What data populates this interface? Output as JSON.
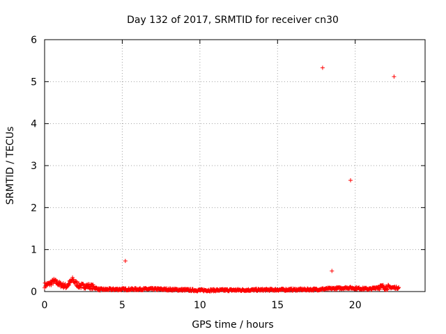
{
  "chart_data": {
    "type": "scatter",
    "title": "Day 132 of 2017, SRMTID for receiver cn30",
    "xlabel": "GPS time / hours",
    "ylabel": "SRMTID / TECUs",
    "xlim": [
      0,
      24.5
    ],
    "ylim": [
      0,
      6
    ],
    "xticks": [
      "0",
      "5",
      "10",
      "15",
      "20"
    ],
    "yticks": [
      "0",
      "1",
      "2",
      "3",
      "4",
      "5",
      "6"
    ],
    "xtick_values": [
      0,
      5,
      10,
      15,
      20
    ],
    "ytick_values": [
      0,
      1,
      2,
      3,
      4,
      5,
      6
    ],
    "grid": true,
    "marker": "+",
    "marker_color": "#ff0000",
    "series": [
      {
        "name": "SRMTID",
        "outliers": [
          {
            "x": 5.2,
            "y": 0.73
          },
          {
            "x": 17.9,
            "y": 5.33
          },
          {
            "x": 18.5,
            "y": 0.49
          },
          {
            "x": 19.7,
            "y": 2.65
          },
          {
            "x": 22.5,
            "y": 5.12
          }
        ],
        "baseline_profile": [
          {
            "x": 0.0,
            "y": 0.15
          },
          {
            "x": 0.3,
            "y": 0.18
          },
          {
            "x": 0.6,
            "y": 0.25
          },
          {
            "x": 1.0,
            "y": 0.17
          },
          {
            "x": 1.4,
            "y": 0.12
          },
          {
            "x": 1.8,
            "y": 0.28
          },
          {
            "x": 2.2,
            "y": 0.14
          },
          {
            "x": 2.8,
            "y": 0.13
          },
          {
            "x": 3.2,
            "y": 0.1
          },
          {
            "x": 3.5,
            "y": 0.05
          },
          {
            "x": 7.0,
            "y": 0.06
          },
          {
            "x": 10.0,
            "y": 0.03
          },
          {
            "x": 14.0,
            "y": 0.04
          },
          {
            "x": 17.5,
            "y": 0.05
          },
          {
            "x": 19.5,
            "y": 0.09
          },
          {
            "x": 21.0,
            "y": 0.06
          },
          {
            "x": 21.5,
            "y": 0.11
          },
          {
            "x": 22.8,
            "y": 0.09
          }
        ],
        "x_start": 0.0,
        "x_end": 22.8
      }
    ]
  }
}
